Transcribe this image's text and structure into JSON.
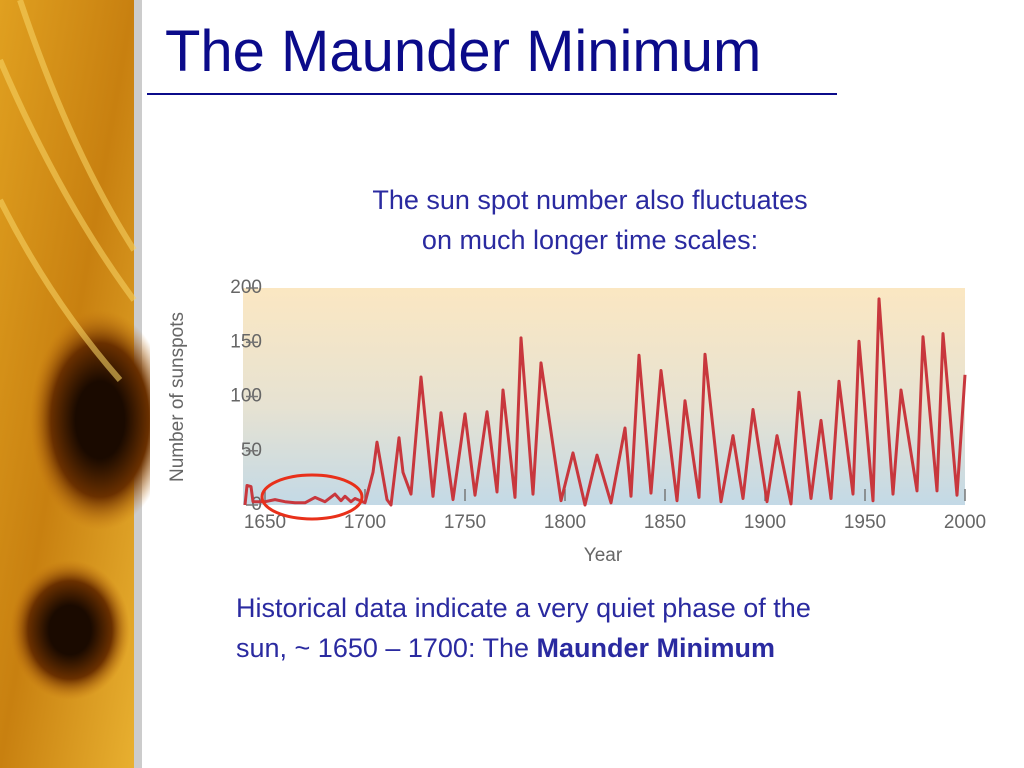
{
  "slide": {
    "title": "The Maunder Minimum",
    "intro": [
      "The sun spot number also fluctuates",
      "on much longer time scales:"
    ],
    "caption": {
      "line1": "Historical data indicate a very quiet phase of the",
      "line2": "sun, ~ 1650 – 1700: The ",
      "emphasis": "Maunder Minimum"
    }
  },
  "chart_data": {
    "type": "line",
    "x_label": "Year",
    "y_label": "Number of sunspots",
    "xlim": [
      1639,
      2000
    ],
    "ylim": [
      0,
      200
    ],
    "xticks": [
      1650,
      1700,
      1750,
      1800,
      1850,
      1900,
      1950,
      2000
    ],
    "yticks": [
      0,
      50,
      100,
      150,
      200
    ],
    "color": "#c8373d",
    "x": [
      1640,
      1641,
      1643,
      1644,
      1646,
      1650,
      1655,
      1660,
      1665,
      1670,
      1675,
      1680,
      1685,
      1688,
      1690,
      1693,
      1695,
      1700,
      1704,
      1706,
      1711,
      1713,
      1717,
      1719,
      1723,
      1728,
      1734,
      1738,
      1744,
      1750,
      1755,
      1761,
      1766,
      1769,
      1775,
      1778,
      1784,
      1788,
      1798,
      1804,
      1810,
      1816,
      1823,
      1830,
      1833,
      1837,
      1843,
      1848,
      1856,
      1860,
      1867,
      1870,
      1878,
      1884,
      1889,
      1894,
      1901,
      1906,
      1913,
      1917,
      1923,
      1928,
      1933,
      1937,
      1944,
      1947,
      1954,
      1957,
      1964,
      1968,
      1976,
      1979,
      1986,
      1989,
      1996,
      2000
    ],
    "values": [
      0,
      18,
      17,
      3,
      3,
      3,
      5,
      3,
      2,
      2,
      7,
      3,
      10,
      4,
      8,
      3,
      6,
      2,
      30,
      58,
      5,
      0,
      62,
      30,
      10,
      118,
      8,
      85,
      5,
      84,
      9,
      86,
      12,
      106,
      7,
      154,
      10,
      131,
      4,
      48,
      0,
      46,
      2,
      71,
      8,
      138,
      11,
      124,
      4,
      96,
      7,
      139,
      3,
      64,
      6,
      88,
      3,
      64,
      1,
      104,
      6,
      78,
      6,
      114,
      10,
      151,
      4,
      190,
      10,
      106,
      13,
      155,
      13,
      158,
      9,
      120
    ]
  }
}
